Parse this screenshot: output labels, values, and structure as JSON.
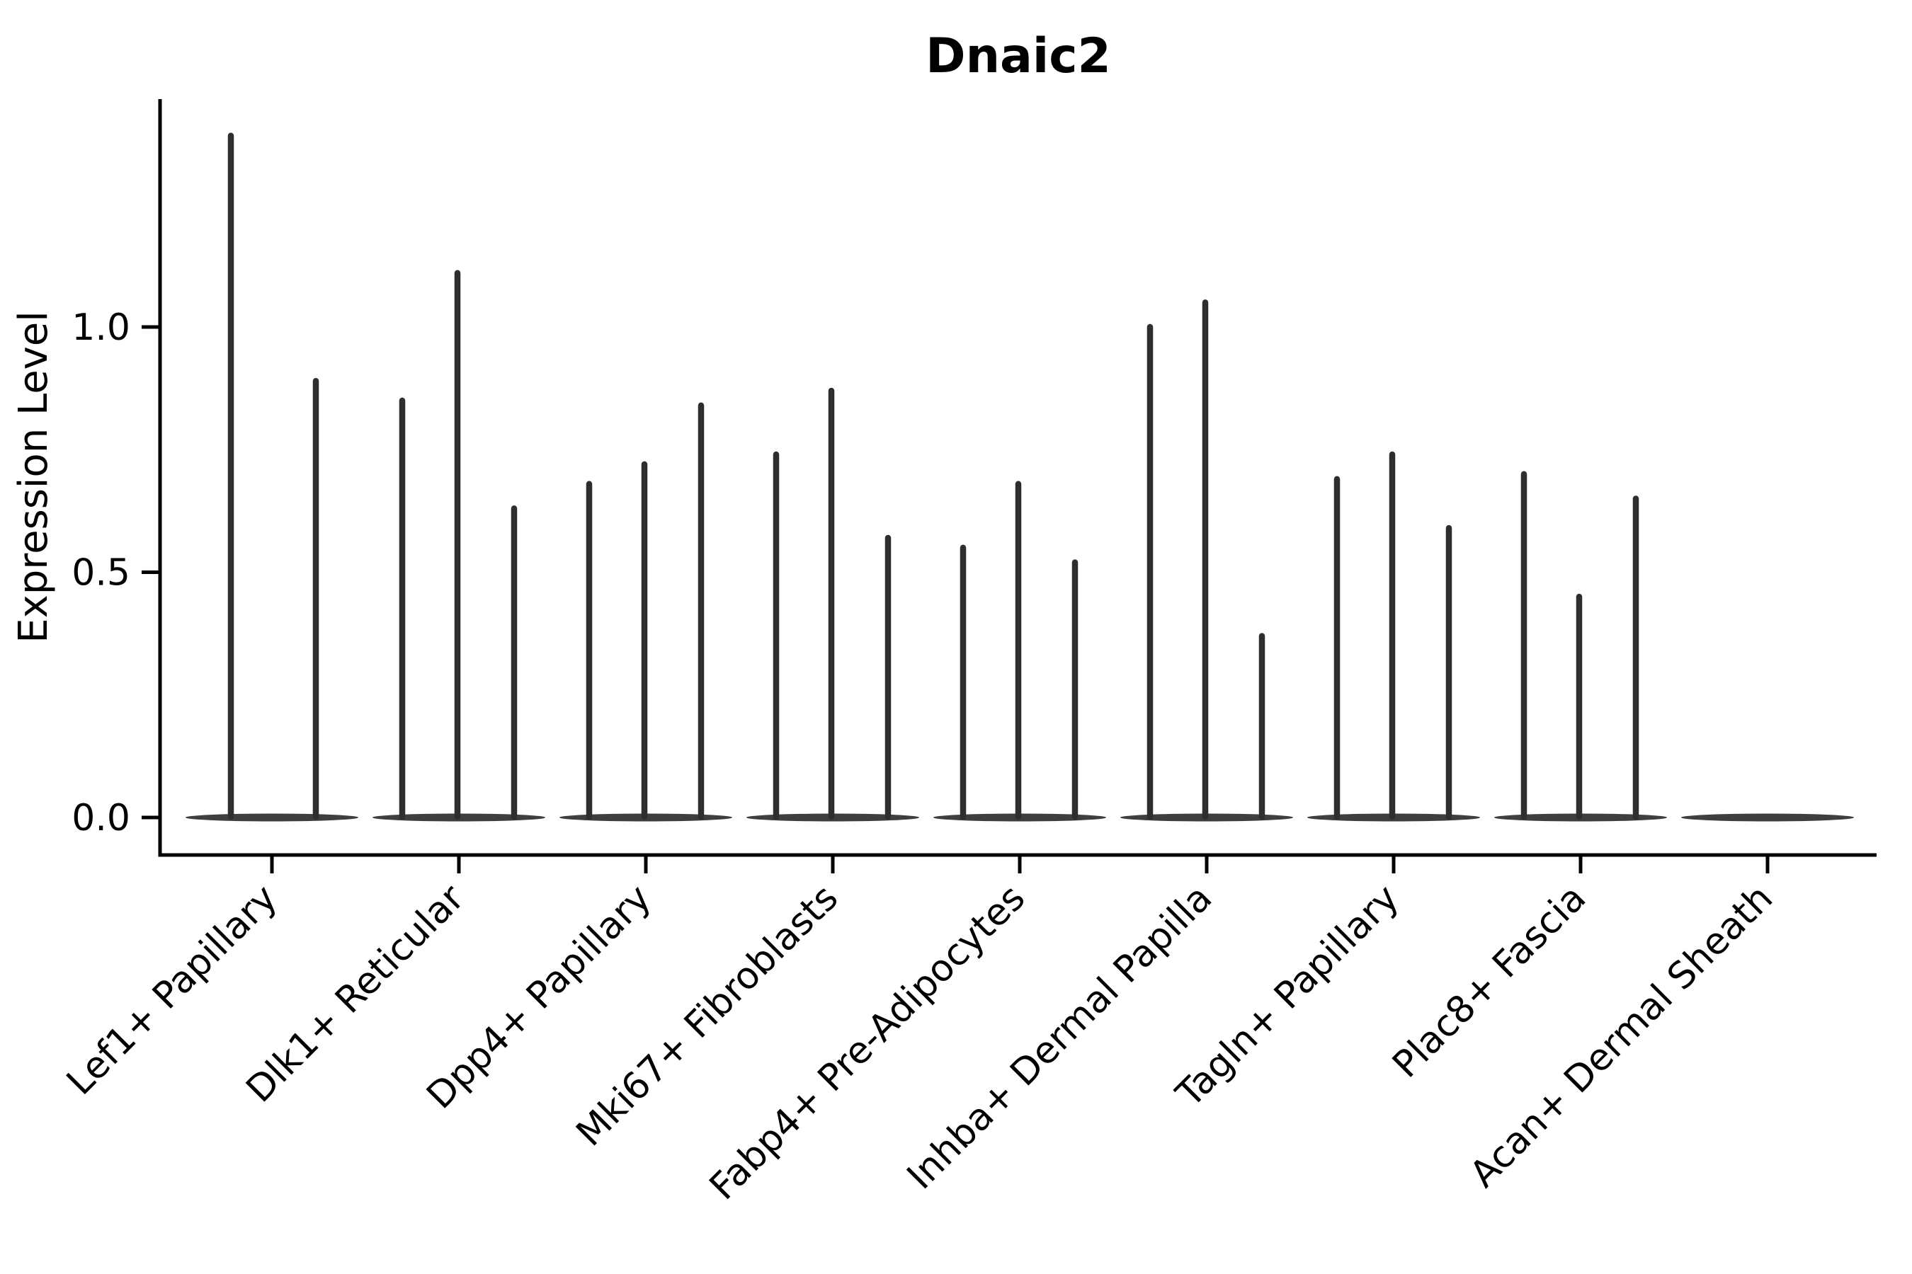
{
  "page": {
    "background_color": "#ffffff",
    "foreground_color": "#000000",
    "violin_color": "#2e2e2e"
  },
  "chart_data": {
    "type": "violin",
    "title": "Dnaic2",
    "xlabel": "",
    "ylabel": "Expression Level",
    "legend": null,
    "grid": false,
    "ylim": [
      -0.08,
      1.47
    ],
    "yticks": [
      {
        "value": 0.0,
        "label": "0.0"
      },
      {
        "value": 0.5,
        "label": "0.5"
      },
      {
        "value": 1.0,
        "label": "1.0"
      }
    ],
    "categories": [
      "Lef1+ Papillary",
      "Dlk1+ Reticular",
      "Dpp4+ Papillary",
      "Mki67+ Fibroblasts",
      "Fabp4+ Pre-Adipocytes",
      "Inhba+ Dermal Papilla",
      "Tagln+ Papillary",
      "Plac8+ Fascia",
      "Acan+ Dermal Sheath"
    ],
    "groups": [
      {
        "category": "Lef1+ Papillary",
        "baseline_value": 0.0,
        "spikes": [
          {
            "offset": -58,
            "max": 1.39
          },
          {
            "offset": 62,
            "max": 0.89
          }
        ]
      },
      {
        "category": "Dlk1+ Reticular",
        "baseline_value": 0.0,
        "spikes": [
          {
            "offset": -80,
            "max": 0.85
          },
          {
            "offset": -2,
            "max": 1.11
          },
          {
            "offset": 78,
            "max": 0.63
          }
        ]
      },
      {
        "category": "Dpp4+ Papillary",
        "baseline_value": 0.0,
        "spikes": [
          {
            "offset": -80,
            "max": 0.68
          },
          {
            "offset": -2,
            "max": 0.72
          },
          {
            "offset": 78,
            "max": 0.84
          }
        ]
      },
      {
        "category": "Mki67+ Fibroblasts",
        "baseline_value": 0.0,
        "spikes": [
          {
            "offset": -80,
            "max": 0.74
          },
          {
            "offset": -2,
            "max": 0.87
          },
          {
            "offset": 78,
            "max": 0.57
          }
        ]
      },
      {
        "category": "Fabp4+ Pre-Adipocytes",
        "baseline_value": 0.0,
        "spikes": [
          {
            "offset": -80,
            "max": 0.55
          },
          {
            "offset": -2,
            "max": 0.68
          },
          {
            "offset": 78,
            "max": 0.52
          }
        ]
      },
      {
        "category": "Inhba+ Dermal Papilla",
        "baseline_value": 0.0,
        "spikes": [
          {
            "offset": -80,
            "max": 1.0
          },
          {
            "offset": -2,
            "max": 1.05
          },
          {
            "offset": 78,
            "max": 0.37
          }
        ]
      },
      {
        "category": "Tagln+ Papillary",
        "baseline_value": 0.0,
        "spikes": [
          {
            "offset": -80,
            "max": 0.69
          },
          {
            "offset": -2,
            "max": 0.74
          },
          {
            "offset": 78,
            "max": 0.59
          }
        ]
      },
      {
        "category": "Plac8+ Fascia",
        "baseline_value": 0.0,
        "spikes": [
          {
            "offset": -80,
            "max": 0.7
          },
          {
            "offset": -2,
            "max": 0.45
          },
          {
            "offset": 78,
            "max": 0.65
          }
        ]
      },
      {
        "category": "Acan+ Dermal Sheath",
        "baseline_value": 0.0,
        "spikes": []
      }
    ]
  }
}
